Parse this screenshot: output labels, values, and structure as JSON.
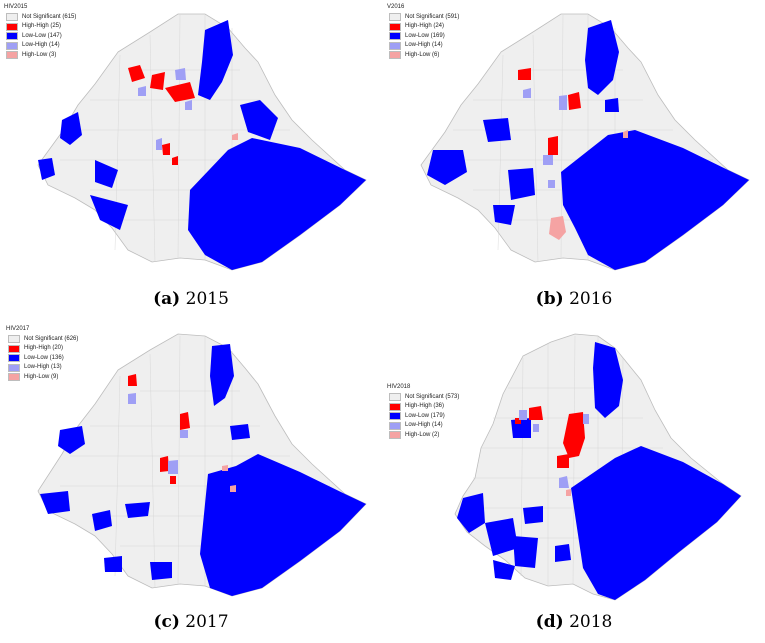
{
  "colors": {
    "not_significant": "#efefef",
    "high_high": "#ff0000",
    "low_low": "#0000ff",
    "low_high": "#9f9ff5",
    "high_low": "#f5a3a3",
    "border": "#bdbdbd"
  },
  "panels": [
    {
      "legend_title": "HIV2015",
      "legend": [
        {
          "label": "Not Significant (615)",
          "color": "#efefef"
        },
        {
          "label": "High-High (25)",
          "color": "#ff0000"
        },
        {
          "label": "Low-Low (147)",
          "color": "#0000ff"
        },
        {
          "label": "Low-High (14)",
          "color": "#9f9ff5"
        },
        {
          "label": "High-Low (3)",
          "color": "#f5a3a3"
        }
      ],
      "caption_letter": "(a)",
      "caption_year": "2015"
    },
    {
      "legend_title": "V2016",
      "legend": [
        {
          "label": "Not Significant (591)",
          "color": "#efefef"
        },
        {
          "label": "High-High (24)",
          "color": "#ff0000"
        },
        {
          "label": "Low-Low (169)",
          "color": "#0000ff"
        },
        {
          "label": "Low-High (14)",
          "color": "#9f9ff5"
        },
        {
          "label": "High-Low (6)",
          "color": "#f5a3a3"
        }
      ],
      "caption_letter": "(b)",
      "caption_year": "2016"
    },
    {
      "legend_title": "HIV2017",
      "legend": [
        {
          "label": "Not Significant (626)",
          "color": "#efefef"
        },
        {
          "label": "High-High (20)",
          "color": "#ff0000"
        },
        {
          "label": "Low-Low (136)",
          "color": "#0000ff"
        },
        {
          "label": "Low-High (13)",
          "color": "#9f9ff5"
        },
        {
          "label": "High-Low (9)",
          "color": "#f5a3a3"
        }
      ],
      "caption_letter": "(c)",
      "caption_year": "2017"
    },
    {
      "legend_title": "HIV2018",
      "legend": [
        {
          "label": "Not Significant (573)",
          "color": "#efefef"
        },
        {
          "label": "High-High (36)",
          "color": "#ff0000"
        },
        {
          "label": "Low-Low (179)",
          "color": "#0000ff"
        },
        {
          "label": "Low-High (14)",
          "color": "#9f9ff5"
        },
        {
          "label": "High-Low (2)",
          "color": "#f5a3a3"
        }
      ],
      "caption_letter": "(d)",
      "caption_year": "2018"
    }
  ]
}
